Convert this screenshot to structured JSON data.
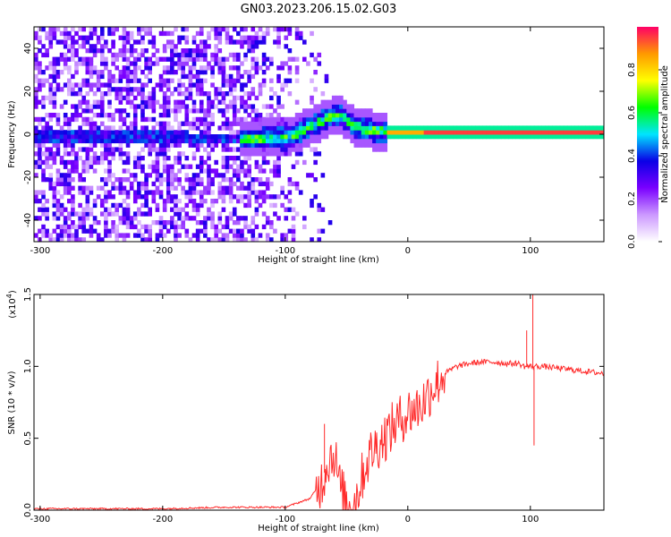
{
  "title": "GN03.2023.206.15.02.G03",
  "chart_data": [
    {
      "type": "heatmap",
      "xlabel": "Height of straight line (km)",
      "ylabel": "Frequency (Hz)",
      "xlim": [
        -305,
        160
      ],
      "ylim": [
        -50,
        50
      ],
      "xticks": [
        -300,
        -200,
        -100,
        0,
        100
      ],
      "yticks": [
        -40,
        -20,
        0,
        20,
        40
      ],
      "colorbar": {
        "label": "Normalized spectral amplitude",
        "range": [
          0,
          1
        ],
        "ticks": [
          "0.0",
          "0.2",
          "0.4",
          "0.6",
          "0.8"
        ],
        "colors": [
          "#ffffff",
          "#cc99ff",
          "#7a00ff",
          "#0a00e6",
          "#00e5ff",
          "#00ff00",
          "#ffff00",
          "#ff9900",
          "#ff0066"
        ]
      },
      "ridge": {
        "x": [
          -200,
          -180,
          -140,
          -120,
          -100,
          -90,
          -80,
          -70,
          -60,
          -55,
          -50,
          -45,
          -40,
          -30,
          -20,
          -10,
          0,
          20,
          50,
          100,
          160
        ],
        "y": [
          -2,
          -3,
          -3,
          -3,
          -2,
          0,
          3,
          6,
          8,
          7,
          5,
          3,
          2,
          1,
          0.5,
          0,
          0,
          0,
          0,
          0,
          0
        ]
      }
    },
    {
      "type": "line",
      "xlabel": "Height of straight line (km)",
      "ylabel": "SNR (10 * v/v)",
      "yscale_label": "(x10",
      "yscale_exp": "4",
      "yscale_close": ")",
      "xlim": [
        -305,
        160
      ],
      "ylim": [
        0,
        1.5
      ],
      "xticks": [
        -300,
        -200,
        -100,
        0,
        100
      ],
      "yticks": [
        "0.0",
        "0.5",
        "1.0",
        "1.5"
      ],
      "color": "#ff2b2b",
      "series": [
        {
          "x": [
            -305,
            -250,
            -200,
            -150,
            -100,
            -80,
            -70,
            -65,
            -60,
            -55,
            -50,
            -45,
            -40,
            -35,
            -30,
            -20,
            -10,
            0,
            10,
            20,
            30,
            40,
            50,
            60,
            70,
            80,
            90,
            95,
            100,
            102,
            105,
            110,
            120,
            130,
            140,
            150,
            160
          ],
          "y": [
            0.01,
            0.01,
            0.01,
            0.02,
            0.02,
            0.08,
            0.2,
            0.35,
            0.4,
            0.15,
            0.05,
            0.02,
            0.15,
            0.3,
            0.4,
            0.5,
            0.6,
            0.68,
            0.72,
            0.85,
            0.95,
            1.0,
            1.02,
            1.03,
            1.03,
            1.02,
            1.02,
            1.0,
            1.0,
            1.0,
            1.0,
            1.0,
            0.99,
            0.98,
            0.97,
            0.96,
            0.95
          ]
        }
      ],
      "spikes": [
        {
          "x": 102,
          "y": 1.5
        },
        {
          "x": 103,
          "y": 0.45
        },
        {
          "x": 97,
          "y": 1.25
        },
        {
          "x": -68,
          "y": 0.6
        }
      ]
    }
  ]
}
